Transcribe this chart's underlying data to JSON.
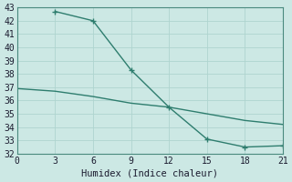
{
  "xlabel": "Humidex (Indice chaleur)",
  "line1_x": [
    3,
    6,
    9,
    12,
    15,
    18,
    21
  ],
  "line1_y": [
    42.7,
    42.0,
    38.3,
    35.5,
    33.1,
    32.5,
    32.6
  ],
  "line2_x": [
    0,
    3,
    6,
    9,
    12,
    15,
    18,
    21
  ],
  "line2_y": [
    36.9,
    36.7,
    36.3,
    35.8,
    35.5,
    35.0,
    34.5,
    34.2
  ],
  "color": "#2e7d6e",
  "bg_color": "#cce8e4",
  "grid_color": "#afd4cf",
  "xlim": [
    0,
    21
  ],
  "ylim": [
    32,
    43
  ],
  "xticks": [
    0,
    3,
    6,
    9,
    12,
    15,
    18,
    21
  ],
  "yticks": [
    32,
    33,
    34,
    35,
    36,
    37,
    38,
    39,
    40,
    41,
    42,
    43
  ],
  "marker_size": 4,
  "line_width": 1.0,
  "xlabel_fontsize": 7.5,
  "tick_fontsize": 7
}
